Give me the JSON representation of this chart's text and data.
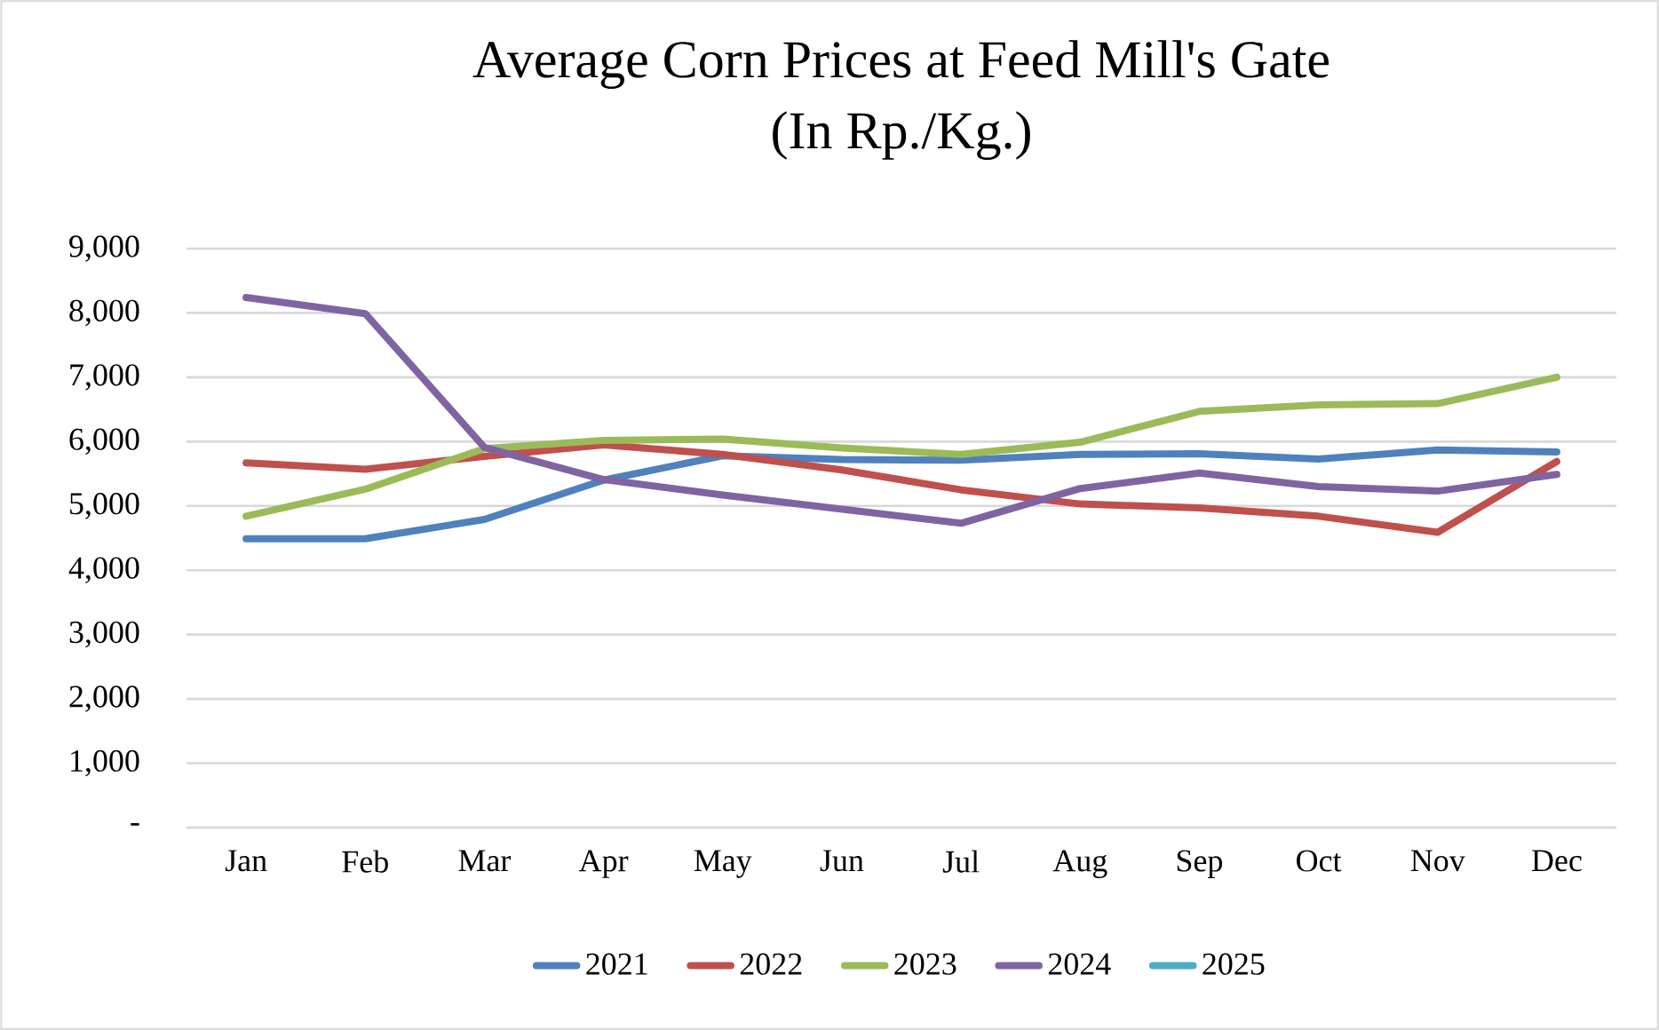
{
  "chart_data": {
    "type": "line",
    "title": "Average Corn Prices at Feed Mill's Gate",
    "subtitle": "(In Rp./Kg.)",
    "categories": [
      "Jan",
      "Feb",
      "Mar",
      "Apr",
      "May",
      "Jun",
      "Jul",
      "Aug",
      "Sep",
      "Oct",
      "Nov",
      "Dec"
    ],
    "series": [
      {
        "name": "2021",
        "color": "#4f81bd",
        "values": [
          4490,
          4490,
          4790,
          5400,
          5780,
          5720,
          5710,
          5800,
          5810,
          5730,
          5870,
          5840
        ]
      },
      {
        "name": "2022",
        "color": "#c0504d",
        "values": [
          5670,
          5570,
          5770,
          5950,
          5800,
          5560,
          5250,
          5030,
          4970,
          4840,
          4590,
          5690
        ]
      },
      {
        "name": "2023",
        "color": "#9bbb59",
        "values": [
          4840,
          5260,
          5890,
          6020,
          6040,
          5900,
          5800,
          5990,
          6470,
          6570,
          6590,
          7000
        ]
      },
      {
        "name": "2024",
        "color": "#8064a2",
        "values": [
          8240,
          7990,
          5910,
          5410,
          5170,
          4950,
          4730,
          5270,
          5510,
          5300,
          5230,
          5490
        ]
      },
      {
        "name": "2025",
        "color": "#4bacc6",
        "values": [
          null,
          null,
          null,
          null,
          null,
          null,
          null,
          null,
          null,
          null,
          null,
          null
        ]
      }
    ],
    "ylim": [
      0,
      9000
    ],
    "yticks": [
      {
        "value": 0,
        "label": "-"
      },
      {
        "value": 1000,
        "label": "1,000"
      },
      {
        "value": 2000,
        "label": "2,000"
      },
      {
        "value": 3000,
        "label": "3,000"
      },
      {
        "value": 4000,
        "label": "4,000"
      },
      {
        "value": 5000,
        "label": "5,000"
      },
      {
        "value": 6000,
        "label": "6,000"
      },
      {
        "value": 7000,
        "label": "7,000"
      },
      {
        "value": 8000,
        "label": "8,000"
      },
      {
        "value": 9000,
        "label": "9,000"
      }
    ],
    "grid": "y",
    "legend": "bottom",
    "marker": "none",
    "line_style": "solid"
  }
}
